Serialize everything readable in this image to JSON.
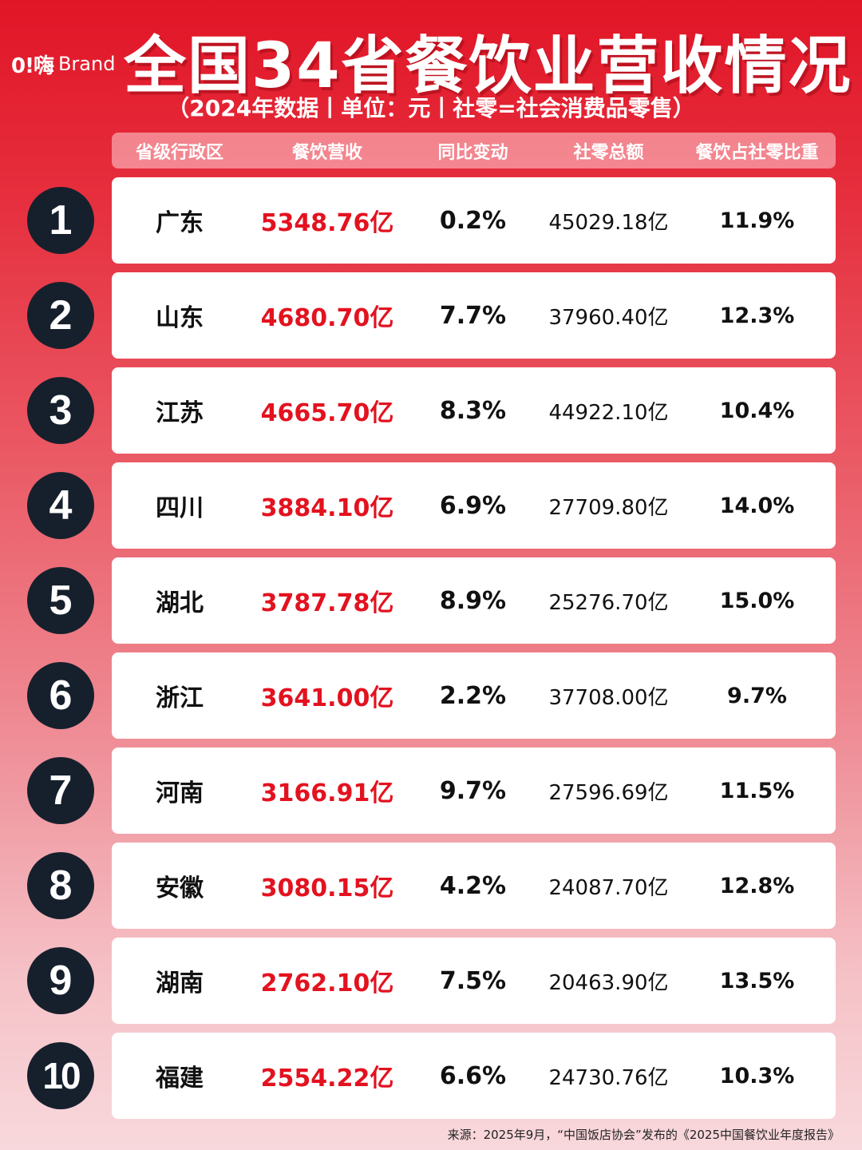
{
  "logo": {
    "mark": "0!嗨",
    "brand": "Brand"
  },
  "title": "全国34省餐饮业营收情况",
  "subtitle": "（2024年数据丨单位：元丨社零=社会消费品零售）",
  "columns": [
    "省级行政区",
    "餐饮营收",
    "同比变动",
    "社零总额",
    "餐饮占社零比重"
  ],
  "rows": [
    {
      "rank": "1",
      "province": "广东",
      "revenue": "5348.76亿",
      "yoy": "0.2%",
      "retail": "45029.18亿",
      "share": "11.9%"
    },
    {
      "rank": "2",
      "province": "山东",
      "revenue": "4680.70亿",
      "yoy": "7.7%",
      "retail": "37960.40亿",
      "share": "12.3%"
    },
    {
      "rank": "3",
      "province": "江苏",
      "revenue": "4665.70亿",
      "yoy": "8.3%",
      "retail": "44922.10亿",
      "share": "10.4%"
    },
    {
      "rank": "4",
      "province": "四川",
      "revenue": "3884.10亿",
      "yoy": "6.9%",
      "retail": "27709.80亿",
      "share": "14.0%"
    },
    {
      "rank": "5",
      "province": "湖北",
      "revenue": "3787.78亿",
      "yoy": "8.9%",
      "retail": "25276.70亿",
      "share": "15.0%"
    },
    {
      "rank": "6",
      "province": "浙江",
      "revenue": "3641.00亿",
      "yoy": "2.2%",
      "retail": "37708.00亿",
      "share": "9.7%"
    },
    {
      "rank": "7",
      "province": "河南",
      "revenue": "3166.91亿",
      "yoy": "9.7%",
      "retail": "27596.69亿",
      "share": "11.5%"
    },
    {
      "rank": "8",
      "province": "安徽",
      "revenue": "3080.15亿",
      "yoy": "4.2%",
      "retail": "24087.70亿",
      "share": "12.8%"
    },
    {
      "rank": "9",
      "province": "湖南",
      "revenue": "2762.10亿",
      "yoy": "7.5%",
      "retail": "20463.90亿",
      "share": "13.5%"
    },
    {
      "rank": "10",
      "province": "福建",
      "revenue": "2554.22亿",
      "yoy": "6.6%",
      "retail": "24730.76亿",
      "share": "10.3%"
    }
  ],
  "source": "来源：2025年9月，“中国饭店协会”发布的《2025中国餐饮业年度报告》",
  "colors": {
    "accent_red": "#e3121f",
    "rank_badge": "#16202c"
  }
}
